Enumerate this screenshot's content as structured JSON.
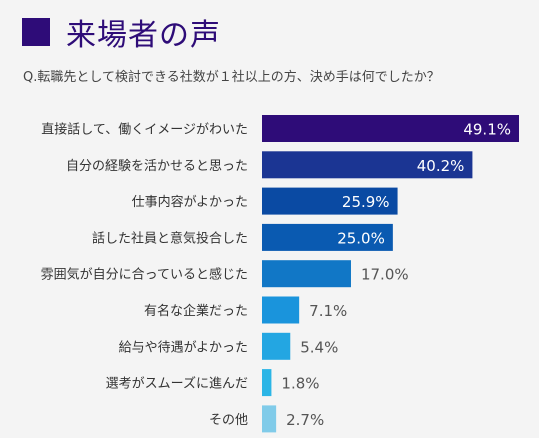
{
  "header": {
    "title": "来場者の声",
    "question": "Q.転職先として検討できる社数が１社以上の方、決め手は何でしたか？"
  },
  "colors": {
    "title": "#2e0c78",
    "bars": [
      "#2e0c78",
      "#1b3593",
      "#0a4aa3",
      "#0a5ab1",
      "#1177c6",
      "#1a94dc",
      "#23a6e2",
      "#2bb5e6",
      "#80cbe9"
    ]
  },
  "chart_data": {
    "type": "bar",
    "orientation": "horizontal",
    "categories": [
      "直接話して、働くイメージがわいた",
      "自分の経験を活かせると思った",
      "仕事内容がよかった",
      "話した社員と意気投合した",
      "雰囲気が自分に合っていると感じた",
      "有名な企業だった",
      "給与や待遇がよかった",
      "選考がスムーズに進んだ",
      "その他"
    ],
    "values": [
      49.1,
      40.2,
      25.9,
      25.0,
      17.0,
      7.1,
      5.4,
      1.8,
      2.7
    ],
    "labels": [
      "49.1%",
      "40.2%",
      "25.9%",
      "25.0%",
      "17.0%",
      "7.1%",
      "5.4%",
      "1.8%",
      "2.7%"
    ],
    "xlim": [
      0,
      49.1
    ],
    "grid": false,
    "legend": "none"
  }
}
